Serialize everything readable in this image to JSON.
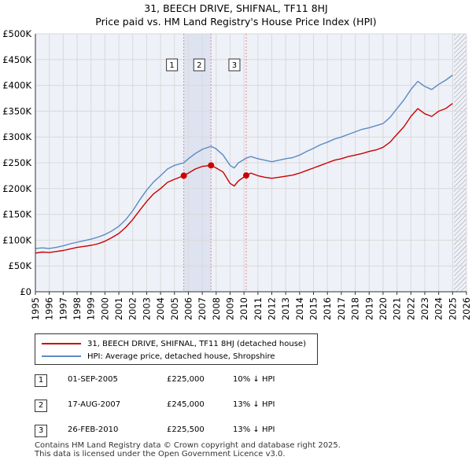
{
  "title": "31, BEECH DRIVE, SHIFNAL, TF11 8HJ",
  "subtitle": "Price paid vs. HM Land Registry's House Price Index (HPI)",
  "legend": {
    "property_label": "31, BEECH DRIVE, SHIFNAL, TF11 8HJ (detached house)",
    "hpi_label": "HPI: Average price, detached house, Shropshire"
  },
  "sales": [
    {
      "num": "1",
      "date": "01-SEP-2005",
      "price": "£225,000",
      "hpi": "10% ↓ HPI"
    },
    {
      "num": "2",
      "date": "17-AUG-2007",
      "price": "£245,000",
      "hpi": "13% ↓ HPI"
    },
    {
      "num": "3",
      "date": "26-FEB-2010",
      "price": "£225,500",
      "hpi": "13% ↓ HPI"
    }
  ],
  "footer": {
    "line1": "Contains HM Land Registry data © Crown copyright and database right 2025.",
    "line2": "This data is licensed under the Open Government Licence v3.0."
  },
  "colors": {
    "property": "#cc0000",
    "hpi": "#5b8ac4",
    "grid": "#d9d9d9",
    "plot_bg": "#eef1f8",
    "marker_line": "#ee8888",
    "future_hatch": "#999999"
  },
  "chart_data": {
    "type": "line",
    "title": "31, BEECH DRIVE, SHIFNAL, TF11 8HJ",
    "subtitle": "Price paid vs. HM Land Registry's House Price Index (HPI)",
    "xlabel": "",
    "ylabel": "",
    "xlim": [
      1995,
      2026
    ],
    "ylim": [
      0,
      500000
    ],
    "x_ticks": [
      1995,
      1996,
      1997,
      1998,
      1999,
      2000,
      2001,
      2002,
      2003,
      2004,
      2005,
      2006,
      2007,
      2008,
      2009,
      2010,
      2011,
      2012,
      2013,
      2014,
      2015,
      2016,
      2017,
      2018,
      2019,
      2020,
      2021,
      2022,
      2023,
      2024,
      2025,
      2026
    ],
    "y_ticks": [
      0,
      50000,
      100000,
      150000,
      200000,
      250000,
      300000,
      350000,
      400000,
      450000,
      500000
    ],
    "y_tick_labels": [
      "£0",
      "£50K",
      "£100K",
      "£150K",
      "£200K",
      "£250K",
      "£300K",
      "£350K",
      "£400K",
      "£450K",
      "£500K"
    ],
    "grid": true,
    "future_from": 2025.1,
    "series": [
      {
        "name": "31, BEECH DRIVE, SHIFNAL, TF11 8HJ (detached house)",
        "points": [
          [
            1995.0,
            75000
          ],
          [
            1995.5,
            77000
          ],
          [
            1996.0,
            76000
          ],
          [
            1996.5,
            78000
          ],
          [
            1997.0,
            80000
          ],
          [
            1997.5,
            83000
          ],
          [
            1998.0,
            86000
          ],
          [
            1998.5,
            88000
          ],
          [
            1999.0,
            90000
          ],
          [
            1999.5,
            93000
          ],
          [
            2000.0,
            98000
          ],
          [
            2000.5,
            105000
          ],
          [
            2001.0,
            113000
          ],
          [
            2001.5,
            125000
          ],
          [
            2002.0,
            140000
          ],
          [
            2002.5,
            158000
          ],
          [
            2003.0,
            175000
          ],
          [
            2003.5,
            190000
          ],
          [
            2004.0,
            200000
          ],
          [
            2004.5,
            212000
          ],
          [
            2005.0,
            218000
          ],
          [
            2005.67,
            225000
          ],
          [
            2006.0,
            230000
          ],
          [
            2006.5,
            238000
          ],
          [
            2007.0,
            243000
          ],
          [
            2007.63,
            245000
          ],
          [
            2008.0,
            240000
          ],
          [
            2008.5,
            232000
          ],
          [
            2009.0,
            210000
          ],
          [
            2009.3,
            205000
          ],
          [
            2009.6,
            215000
          ],
          [
            2010.16,
            225500
          ],
          [
            2010.5,
            230000
          ],
          [
            2011.0,
            225000
          ],
          [
            2011.5,
            222000
          ],
          [
            2012.0,
            220000
          ],
          [
            2012.5,
            222000
          ],
          [
            2013.0,
            224000
          ],
          [
            2013.5,
            226000
          ],
          [
            2014.0,
            230000
          ],
          [
            2014.5,
            235000
          ],
          [
            2015.0,
            240000
          ],
          [
            2015.5,
            245000
          ],
          [
            2016.0,
            250000
          ],
          [
            2016.5,
            255000
          ],
          [
            2017.0,
            258000
          ],
          [
            2017.5,
            262000
          ],
          [
            2018.0,
            265000
          ],
          [
            2018.5,
            268000
          ],
          [
            2019.0,
            272000
          ],
          [
            2019.5,
            275000
          ],
          [
            2020.0,
            280000
          ],
          [
            2020.5,
            290000
          ],
          [
            2021.0,
            305000
          ],
          [
            2021.5,
            320000
          ],
          [
            2022.0,
            340000
          ],
          [
            2022.5,
            355000
          ],
          [
            2023.0,
            345000
          ],
          [
            2023.5,
            340000
          ],
          [
            2024.0,
            350000
          ],
          [
            2024.5,
            355000
          ],
          [
            2025.0,
            365000
          ]
        ]
      },
      {
        "name": "HPI: Average price, detached house, Shropshire",
        "points": [
          [
            1995.0,
            84000
          ],
          [
            1995.5,
            85000
          ],
          [
            1996.0,
            84000
          ],
          [
            1996.5,
            86000
          ],
          [
            1997.0,
            89000
          ],
          [
            1997.5,
            93000
          ],
          [
            1998.0,
            96000
          ],
          [
            1998.5,
            99000
          ],
          [
            1999.0,
            102000
          ],
          [
            1999.5,
            106000
          ],
          [
            2000.0,
            111000
          ],
          [
            2000.5,
            118000
          ],
          [
            2001.0,
            127000
          ],
          [
            2001.5,
            140000
          ],
          [
            2002.0,
            157000
          ],
          [
            2002.5,
            178000
          ],
          [
            2003.0,
            197000
          ],
          [
            2003.5,
            213000
          ],
          [
            2004.0,
            225000
          ],
          [
            2004.5,
            238000
          ],
          [
            2005.0,
            245000
          ],
          [
            2005.67,
            250000
          ],
          [
            2006.0,
            258000
          ],
          [
            2006.5,
            268000
          ],
          [
            2007.0,
            276000
          ],
          [
            2007.63,
            282000
          ],
          [
            2008.0,
            277000
          ],
          [
            2008.5,
            265000
          ],
          [
            2009.0,
            245000
          ],
          [
            2009.3,
            240000
          ],
          [
            2009.6,
            250000
          ],
          [
            2010.16,
            259000
          ],
          [
            2010.5,
            262000
          ],
          [
            2011.0,
            258000
          ],
          [
            2011.5,
            255000
          ],
          [
            2012.0,
            252000
          ],
          [
            2012.5,
            255000
          ],
          [
            2013.0,
            258000
          ],
          [
            2013.5,
            260000
          ],
          [
            2014.0,
            265000
          ],
          [
            2014.5,
            272000
          ],
          [
            2015.0,
            278000
          ],
          [
            2015.5,
            285000
          ],
          [
            2016.0,
            290000
          ],
          [
            2016.5,
            296000
          ],
          [
            2017.0,
            300000
          ],
          [
            2017.5,
            305000
          ],
          [
            2018.0,
            310000
          ],
          [
            2018.5,
            315000
          ],
          [
            2019.0,
            318000
          ],
          [
            2019.5,
            322000
          ],
          [
            2020.0,
            326000
          ],
          [
            2020.5,
            338000
          ],
          [
            2021.0,
            355000
          ],
          [
            2021.5,
            372000
          ],
          [
            2022.0,
            392000
          ],
          [
            2022.5,
            408000
          ],
          [
            2023.0,
            398000
          ],
          [
            2023.5,
            392000
          ],
          [
            2024.0,
            402000
          ],
          [
            2024.5,
            410000
          ],
          [
            2025.0,
            420000
          ]
        ]
      }
    ],
    "sale_markers": [
      {
        "label": "1",
        "x": 2005.67,
        "price": 225000
      },
      {
        "label": "2",
        "x": 2007.63,
        "price": 245000
      },
      {
        "label": "3",
        "x": 2010.16,
        "price": 225500
      }
    ]
  }
}
